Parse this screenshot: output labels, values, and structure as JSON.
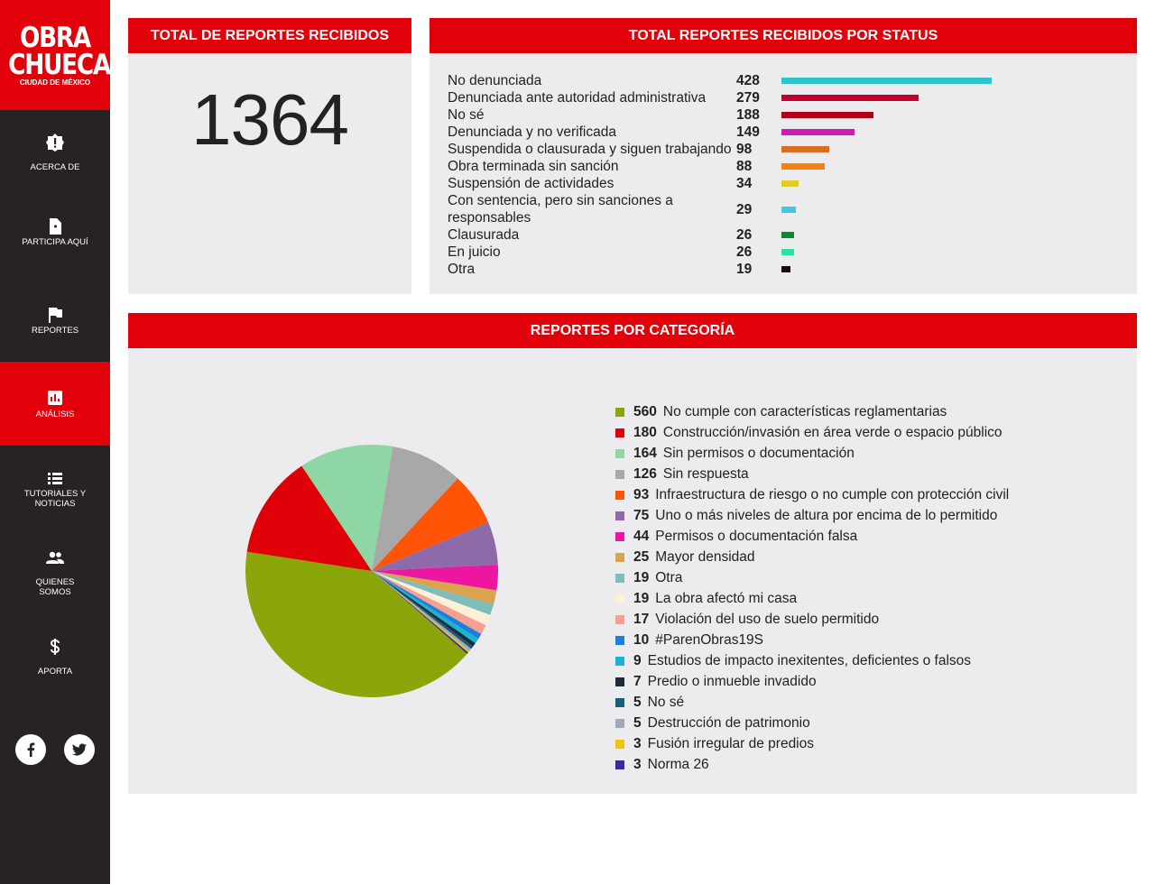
{
  "sidebar": {
    "logo": {
      "line1": "OBRA",
      "line2": "CHUECA",
      "subtitle": "CIUDAD DE MÉXICO"
    },
    "menu": [
      {
        "label": "ACERCA DE"
      },
      {
        "label": "PARTICIPA AQUÍ"
      },
      {
        "label": "REPORTES"
      },
      {
        "label": "ANÁLISIS",
        "active": true
      },
      {
        "label": "TUTORIALES Y NOTICIAS"
      },
      {
        "label": "QUIENES SOMOS"
      },
      {
        "label": "APORTA"
      }
    ]
  },
  "total": {
    "title": "TOTAL DE REPORTES RECIBIDOS",
    "value": 1364
  },
  "chart_data": [
    {
      "type": "bar",
      "orientation": "horizontal",
      "title": "TOTAL REPORTES RECIBIDOS POR STATUS",
      "categories": [
        "No denunciada",
        "Denunciada ante autoridad administrativa",
        "No sé",
        "Denunciada y no verificada",
        "Suspendida o clausurada y siguen trabajando",
        "Obra terminada sin sanción",
        "Suspensión de actividades",
        "Con sentencia, pero sin sanciones a responsables",
        "Clausurada",
        "En juicio",
        "Otra"
      ],
      "values": [
        428,
        279,
        188,
        149,
        98,
        88,
        34,
        29,
        26,
        26,
        19
      ],
      "colors": [
        "#2ec4c8",
        "#c4002f",
        "#b0001a",
        "#d01ab8",
        "#d96e1e",
        "#f58210",
        "#e0cc2a",
        "#3ec9e0",
        "#0a8a2a",
        "#2de0a0",
        "#1a0a0a"
      ]
    },
    {
      "type": "pie",
      "title": "REPORTES POR CATEGORÍA",
      "categories": [
        "No cumple con características reglamentarias",
        "Construcción/invasión en área verde o espacio público",
        "Sin permisos o documentación",
        "Sin respuesta",
        "Infraestructura de riesgo o no cumple con protección civil",
        "Uno o más niveles de altura por encima de lo permitido",
        "Permisos o documentación falsa",
        "Mayor densidad",
        "Otra",
        "La obra afectó mi casa",
        "Violación del uso de suelo permitido",
        "#ParenObras19S",
        "Estudios de impacto inexitentes, deficientes o falsos",
        "Predio o inmueble invadido",
        "No sé",
        "Destrucción de patrimonio",
        "Fusión irregular de predios",
        "Norma 26"
      ],
      "values": [
        560,
        180,
        164,
        126,
        93,
        75,
        44,
        25,
        19,
        19,
        17,
        10,
        9,
        7,
        5,
        5,
        3,
        3
      ],
      "colors": [
        "#8aa60a",
        "#e00008",
        "#8fd6a5",
        "#a8a8a8",
        "#ff5306",
        "#8e6aa8",
        "#ec16a0",
        "#d9a44e",
        "#7fbcbc",
        "#fcf1d6",
        "#f5a090",
        "#1e7fd8",
        "#19b3d6",
        "#1c2a3a",
        "#165e7a",
        "#a0aab8",
        "#f0c40a",
        "#3a2aa0"
      ]
    }
  ]
}
